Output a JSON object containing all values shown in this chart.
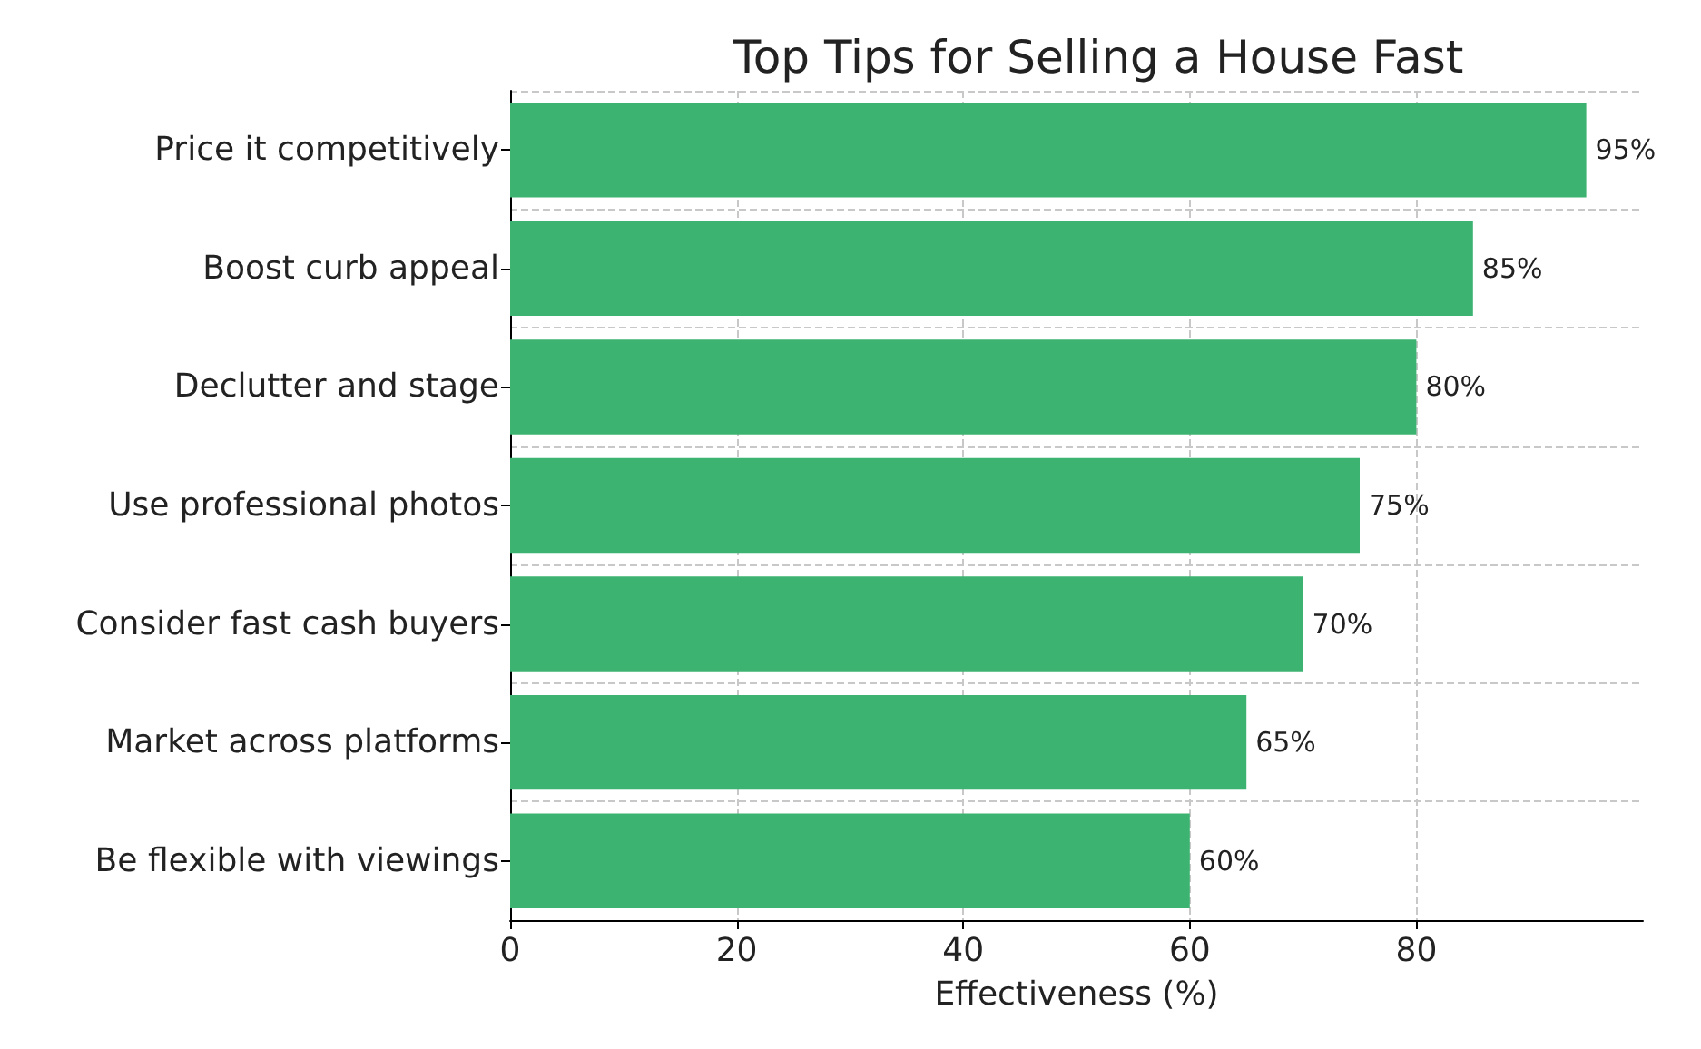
{
  "chart_data": {
    "type": "bar",
    "orientation": "horizontal",
    "title": "Top Tips for Selling a House Fast",
    "xlabel": "Effectiveness (%)",
    "categories": [
      "Price it competitively",
      "Boost curb appeal",
      "Declutter and stage",
      "Use professional photos",
      "Consider fast cash buyers",
      "Market across platforms",
      "Be flexible with viewings"
    ],
    "values": [
      95,
      85,
      80,
      75,
      70,
      65,
      60
    ],
    "value_labels": [
      "95%",
      "85%",
      "80%",
      "75%",
      "70%",
      "65%",
      "60%"
    ],
    "color": "#3cb371",
    "xlim": [
      0,
      100
    ],
    "xticks": [
      0,
      20,
      40,
      60,
      80
    ],
    "grid": true
  }
}
